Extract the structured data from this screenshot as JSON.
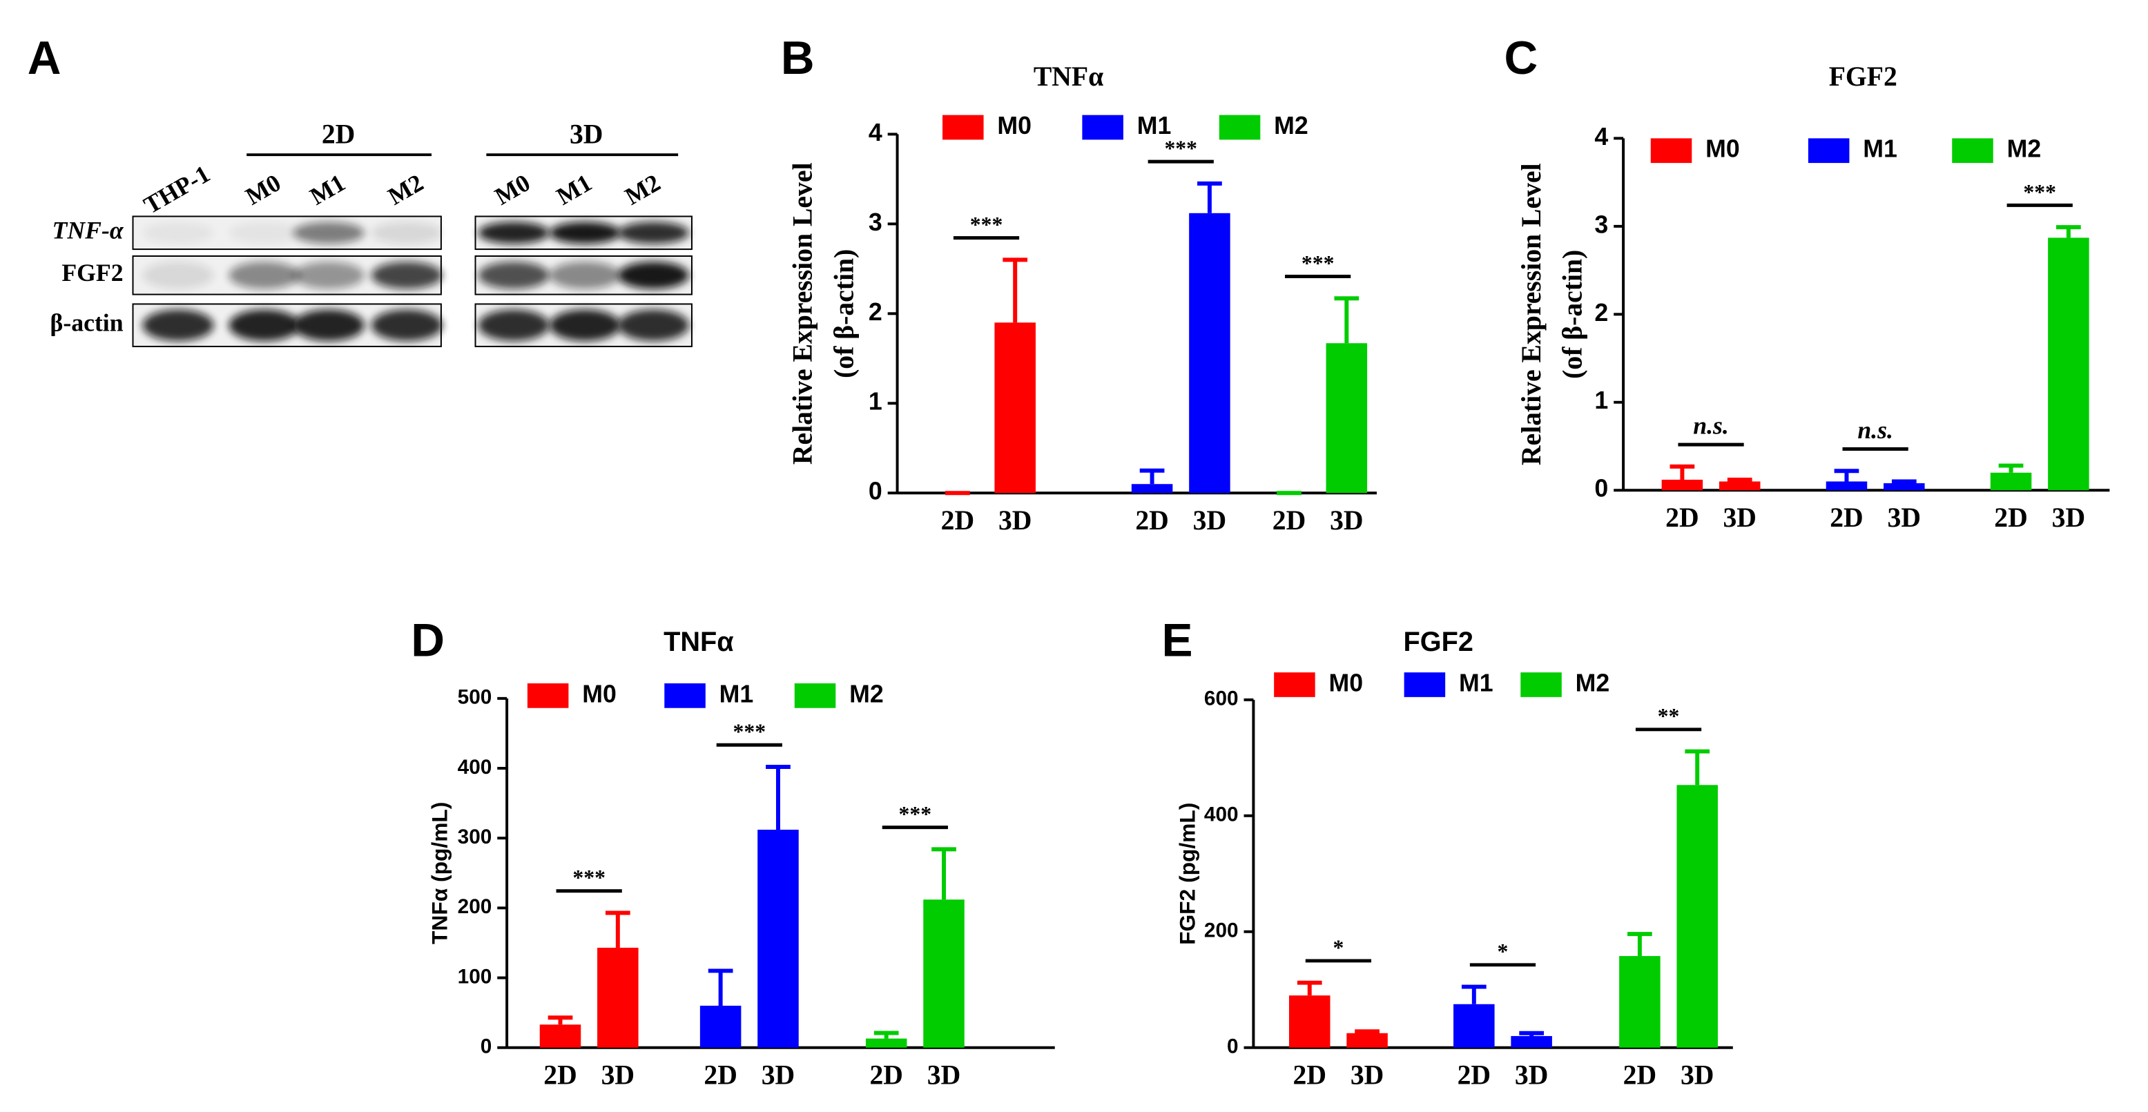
{
  "panel_a": {
    "letter": "A",
    "group_2d": "2D",
    "lanes_2d": [
      "THP-1",
      "M0",
      "M1",
      "M2"
    ],
    "group_3d": "3D",
    "lanes_3d": [
      "M0",
      "M1",
      "M2"
    ],
    "rows": [
      "TNF-α",
      "FGF2",
      "β-actin"
    ]
  },
  "chart_data": [
    {
      "letter": "B",
      "type": "bar",
      "title": "TNFα",
      "ylabel": [
        "Relative Expression Level",
        "(of β-actin)"
      ],
      "categories": [
        "2D",
        "3D"
      ],
      "ylim": [
        0,
        4
      ],
      "yticks": [
        0,
        1,
        2,
        3,
        4
      ],
      "series": [
        {
          "name": "M0",
          "color": "#ff0000",
          "values": [
            0,
            1.9
          ],
          "errors": [
            0,
            0.7
          ]
        },
        {
          "name": "M1",
          "color": "#0000ff",
          "values": [
            0.1,
            3.12
          ],
          "errors": [
            0.15,
            0.33
          ]
        },
        {
          "name": "M2",
          "color": "#00cc00",
          "values": [
            0,
            1.67
          ],
          "errors": [
            0,
            0.5
          ]
        }
      ],
      "annotations": [
        "***",
        "***",
        "***"
      ]
    },
    {
      "letter": "C",
      "type": "bar",
      "title": "FGF2",
      "ylabel": [
        "Relative Expression Level",
        "(of β-actin)"
      ],
      "categories": [
        "2D",
        "3D"
      ],
      "ylim": [
        0,
        4
      ],
      "yticks": [
        0,
        1,
        2,
        3,
        4
      ],
      "series": [
        {
          "name": "M0",
          "color": "#ff0000",
          "values": [
            0.12,
            0.1
          ],
          "errors": [
            0.15,
            0.02
          ]
        },
        {
          "name": "M1",
          "color": "#0000ff",
          "values": [
            0.1,
            0.08
          ],
          "errors": [
            0.12,
            0.02
          ]
        },
        {
          "name": "M2",
          "color": "#00cc00",
          "values": [
            0.2,
            2.87
          ],
          "errors": [
            0.08,
            0.12
          ]
        }
      ],
      "annotations": [
        "n.s.",
        "n.s.",
        "***"
      ]
    },
    {
      "letter": "D",
      "type": "bar",
      "title": "TNFα",
      "ylabel": "TNFα (pg/mL)",
      "categories": [
        "2D",
        "3D"
      ],
      "ylim": [
        0,
        500
      ],
      "yticks": [
        0,
        100,
        200,
        300,
        400,
        500
      ],
      "series": [
        {
          "name": "M0",
          "color": "#ff0000",
          "values": [
            33,
            143
          ],
          "errors": [
            10,
            50
          ]
        },
        {
          "name": "M1",
          "color": "#0000ff",
          "values": [
            60,
            312
          ],
          "errors": [
            50,
            90
          ]
        },
        {
          "name": "M2",
          "color": "#00cc00",
          "values": [
            13,
            212
          ],
          "errors": [
            8,
            72
          ]
        }
      ],
      "annotations": [
        "***",
        "***",
        "***"
      ]
    },
    {
      "letter": "E",
      "type": "bar",
      "title": "FGF2",
      "ylabel": "FGF2 (pg/mL)",
      "categories": [
        "2D",
        "3D"
      ],
      "ylim": [
        0,
        600
      ],
      "yticks": [
        0,
        200,
        400,
        600
      ],
      "series": [
        {
          "name": "M0",
          "color": "#ff0000",
          "values": [
            90,
            25
          ],
          "errors": [
            22,
            3
          ]
        },
        {
          "name": "M1",
          "color": "#0000ff",
          "values": [
            75,
            20
          ],
          "errors": [
            30,
            5
          ]
        },
        {
          "name": "M2",
          "color": "#00cc00",
          "values": [
            158,
            453
          ],
          "errors": [
            38,
            58
          ]
        }
      ],
      "annotations": [
        "*",
        "*",
        "**"
      ]
    }
  ]
}
